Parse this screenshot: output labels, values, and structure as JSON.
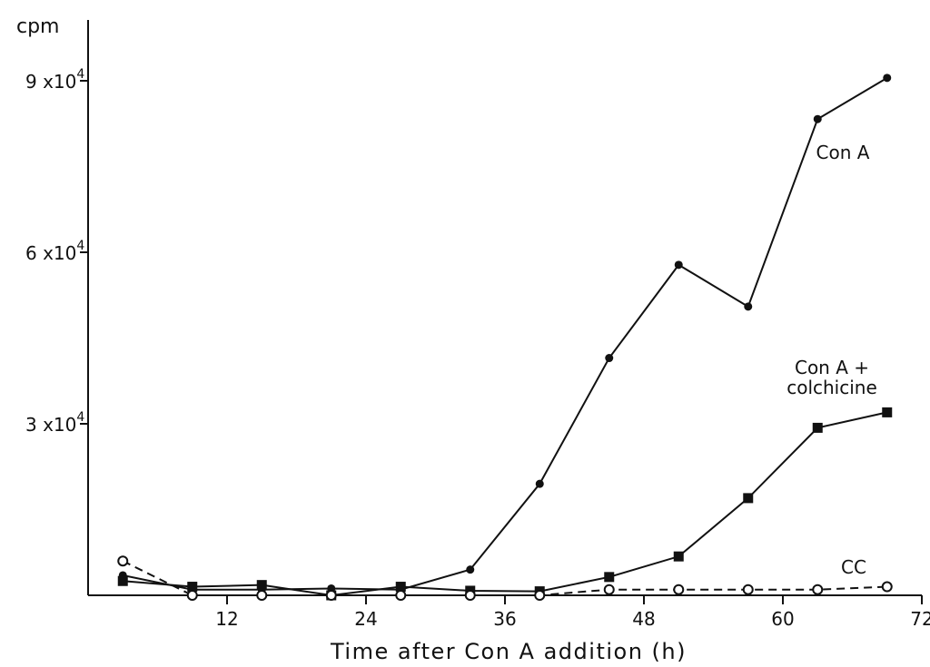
{
  "chart_data": {
    "type": "line",
    "title": "",
    "xlabel": "Time after Con A addition (h)",
    "ylabel": "cpm",
    "xlim": [
      0,
      72
    ],
    "ylim": [
      0,
      90000
    ],
    "x_ticks": [
      12,
      24,
      36,
      48,
      60,
      72
    ],
    "x_tick_labels": [
      "12",
      "24",
      "36",
      "48",
      "60",
      "72"
    ],
    "y_ticks": [
      30000,
      60000,
      90000
    ],
    "y_tick_labels": [
      {
        "mantissa": "3 x10",
        "exp": "4"
      },
      {
        "mantissa": "6 x10",
        "exp": "4"
      },
      {
        "mantissa": "9 x10",
        "exp": "4"
      }
    ],
    "grid": false,
    "series": [
      {
        "name": "Con A",
        "label_lines": [
          "Con A"
        ],
        "marker": "filled-circle",
        "line": "solid",
        "x": [
          3,
          9,
          15,
          21,
          27,
          33,
          39,
          45,
          51,
          57,
          63,
          69
        ],
        "y": [
          3500,
          1000,
          1000,
          1200,
          1000,
          4500,
          19500,
          41500,
          57800,
          50500,
          83300,
          90500
        ]
      },
      {
        "name": "Con A + colchicine",
        "label_lines": [
          "Con A +",
          "colchicine"
        ],
        "marker": "filled-square",
        "line": "solid",
        "x": [
          3,
          9,
          15,
          21,
          27,
          33,
          39,
          45,
          51,
          57,
          63,
          69
        ],
        "y": [
          2500,
          1500,
          1800,
          0,
          1500,
          800,
          700,
          3200,
          6800,
          17000,
          29300,
          32000
        ]
      },
      {
        "name": "CC",
        "label_lines": [
          "CC"
        ],
        "marker": "open-circle",
        "line": "dashed",
        "x": [
          3,
          9,
          15,
          21,
          27,
          33,
          39,
          45,
          51,
          57,
          63,
          69
        ],
        "y": [
          6000,
          0,
          0,
          0,
          0,
          0,
          0,
          1000,
          1000,
          1000,
          1000,
          1500
        ]
      }
    ]
  }
}
